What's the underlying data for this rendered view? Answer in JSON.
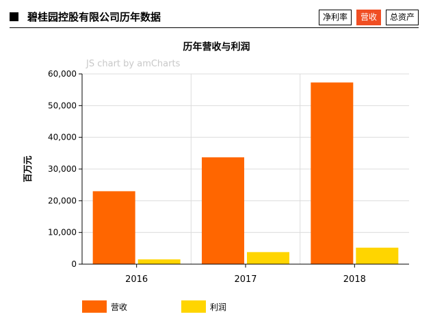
{
  "header": {
    "title": "碧桂园控股有限公司历年数据",
    "tabs": [
      {
        "label": "净利率",
        "active": false
      },
      {
        "label": "营收",
        "active": true
      },
      {
        "label": "总资产",
        "active": false
      }
    ]
  },
  "colors": {
    "revenue": "#ff6600",
    "profit": "#ffd500",
    "active_tab": "#f04e23"
  },
  "chart_data": {
    "type": "bar",
    "title": "历年营收与利润",
    "credit": "JS chart by amCharts",
    "xlabel": "",
    "ylabel": "百万元",
    "categories": [
      "2016",
      "2017",
      "2018"
    ],
    "ylim": [
      0,
      60000
    ],
    "yticks": [
      0,
      10000,
      20000,
      30000,
      40000,
      50000,
      60000
    ],
    "ytick_labels": [
      "0",
      "10,000",
      "20,000",
      "30,000",
      "40,000",
      "50,000",
      "60,000"
    ],
    "grid": true,
    "legend_position": "bottom-left",
    "series": [
      {
        "name": "营收",
        "values": [
          23000,
          33700,
          57300
        ]
      },
      {
        "name": "利润",
        "values": [
          1500,
          3800,
          5200
        ]
      }
    ]
  }
}
